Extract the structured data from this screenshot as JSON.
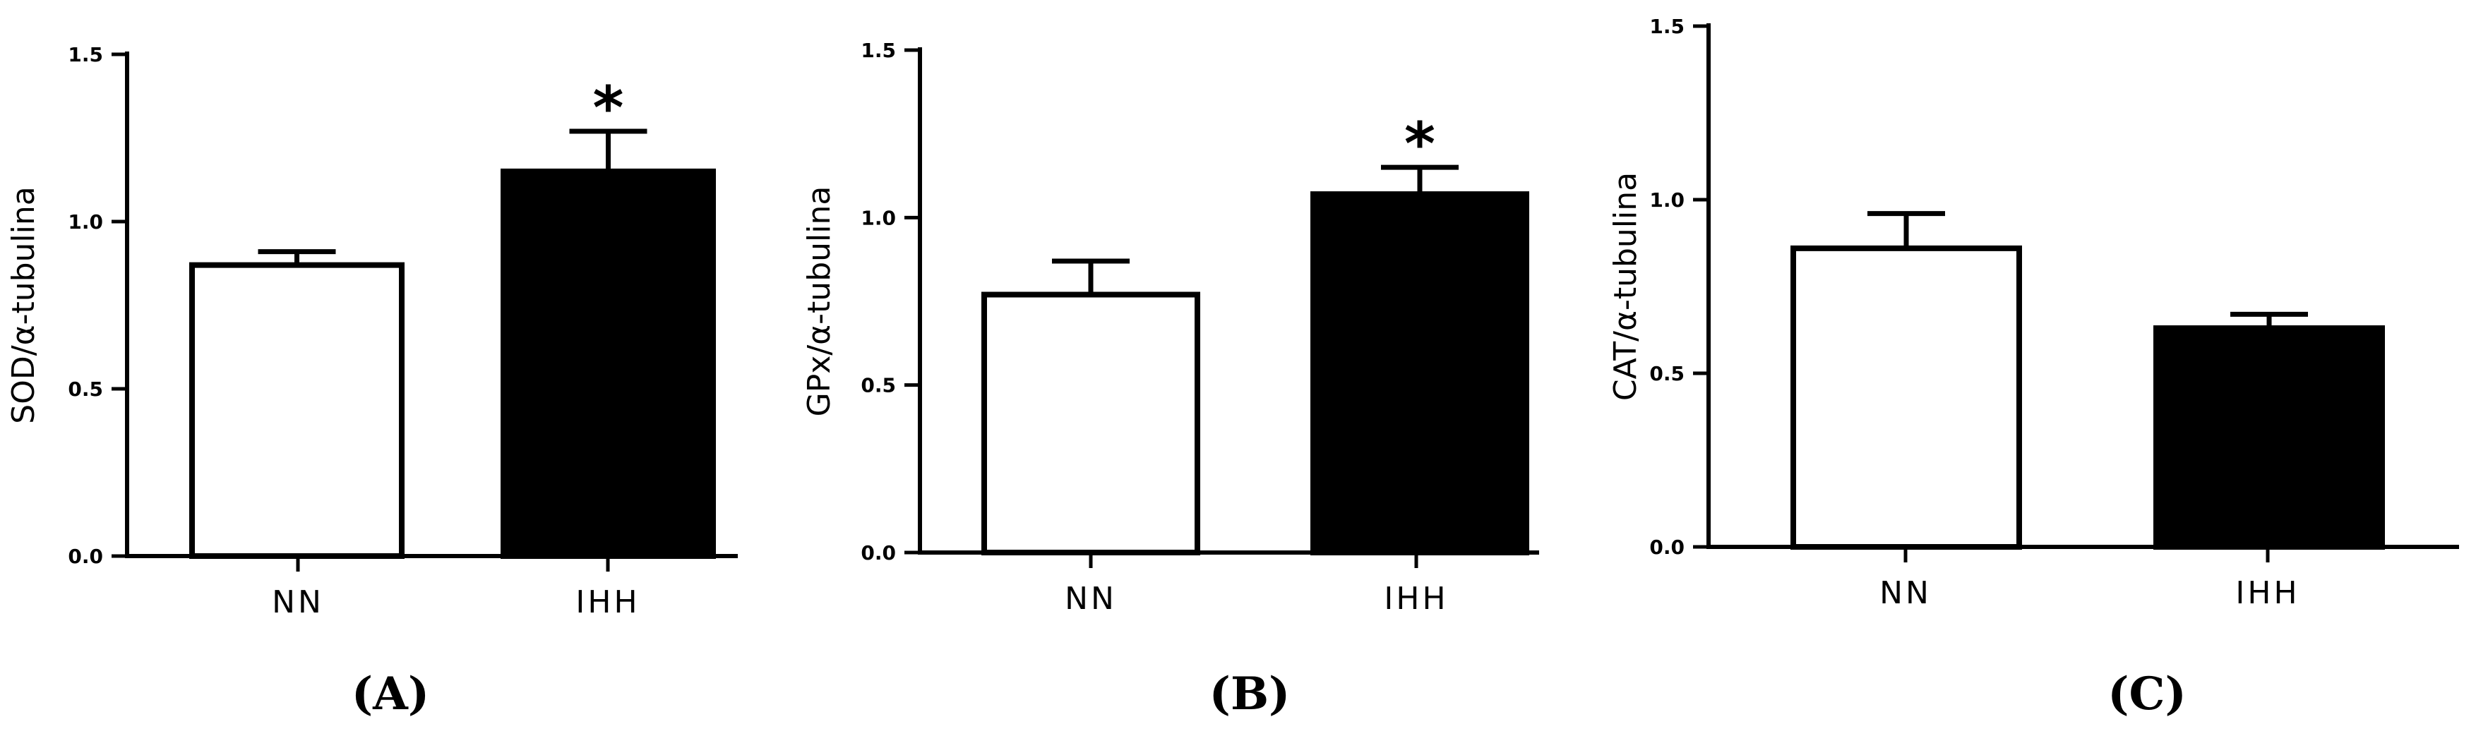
{
  "chart_data": [
    {
      "type": "bar",
      "panel_label": "(A)",
      "ylabel": "SOD/α-tubulina",
      "categories": [
        "NN",
        "IHH"
      ],
      "values": [
        0.87,
        1.15
      ],
      "errors": [
        0.04,
        0.12
      ],
      "bar_fill": [
        "#ffffff",
        "#000000"
      ],
      "significance": [
        "",
        "*"
      ],
      "ylim": [
        0,
        1.5
      ],
      "yticks": [
        "0.0",
        "0.5",
        "1.0",
        "1.5"
      ],
      "grid": false
    },
    {
      "type": "bar",
      "panel_label": "(B)",
      "ylabel": "GPx/α-tubulina",
      "categories": [
        "NN",
        "IHH"
      ],
      "values": [
        0.77,
        1.07
      ],
      "errors": [
        0.1,
        0.08
      ],
      "bar_fill": [
        "#ffffff",
        "#000000"
      ],
      "significance": [
        "",
        "*"
      ],
      "ylim": [
        0,
        1.5
      ],
      "yticks": [
        "0.0",
        "0.5",
        "1.0",
        "1.5"
      ],
      "grid": false
    },
    {
      "type": "bar",
      "panel_label": "(C)",
      "ylabel": "CAT/α-tubulina",
      "categories": [
        "NN",
        "IHH"
      ],
      "values": [
        0.86,
        0.63
      ],
      "errors": [
        0.1,
        0.04
      ],
      "bar_fill": [
        "#ffffff",
        "#000000"
      ],
      "significance": [
        "",
        ""
      ],
      "ylim": [
        0,
        1.5
      ],
      "yticks": [
        "0.0",
        "0.5",
        "1.0",
        "1.5"
      ],
      "grid": false
    }
  ]
}
